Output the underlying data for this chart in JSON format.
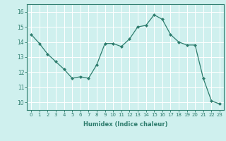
{
  "xlabel": "Humidex (Indice chaleur)",
  "x_values": [
    0,
    1,
    2,
    3,
    4,
    5,
    6,
    7,
    8,
    9,
    10,
    11,
    12,
    13,
    14,
    15,
    16,
    17,
    18,
    19,
    20,
    21,
    22,
    23
  ],
  "y_values": [
    14.5,
    13.9,
    13.2,
    12.7,
    12.2,
    11.6,
    11.7,
    11.6,
    12.5,
    13.9,
    13.9,
    13.7,
    14.2,
    15.0,
    15.1,
    15.8,
    15.5,
    14.5,
    14.0,
    13.8,
    13.8,
    11.6,
    10.1,
    9.9
  ],
  "line_color": "#2e7d6e",
  "marker_color": "#2e7d6e",
  "bg_color": "#cff0ee",
  "grid_color": "#ffffff",
  "axis_color": "#2e7d6e",
  "text_color": "#2e7d6e",
  "ylim": [
    9.5,
    16.5
  ],
  "yticks": [
    10,
    11,
    12,
    13,
    14,
    15,
    16
  ],
  "xlim": [
    -0.5,
    23.5
  ],
  "xticks": [
    0,
    1,
    2,
    3,
    4,
    5,
    6,
    7,
    8,
    9,
    10,
    11,
    12,
    13,
    14,
    15,
    16,
    17,
    18,
    19,
    20,
    21,
    22,
    23
  ]
}
